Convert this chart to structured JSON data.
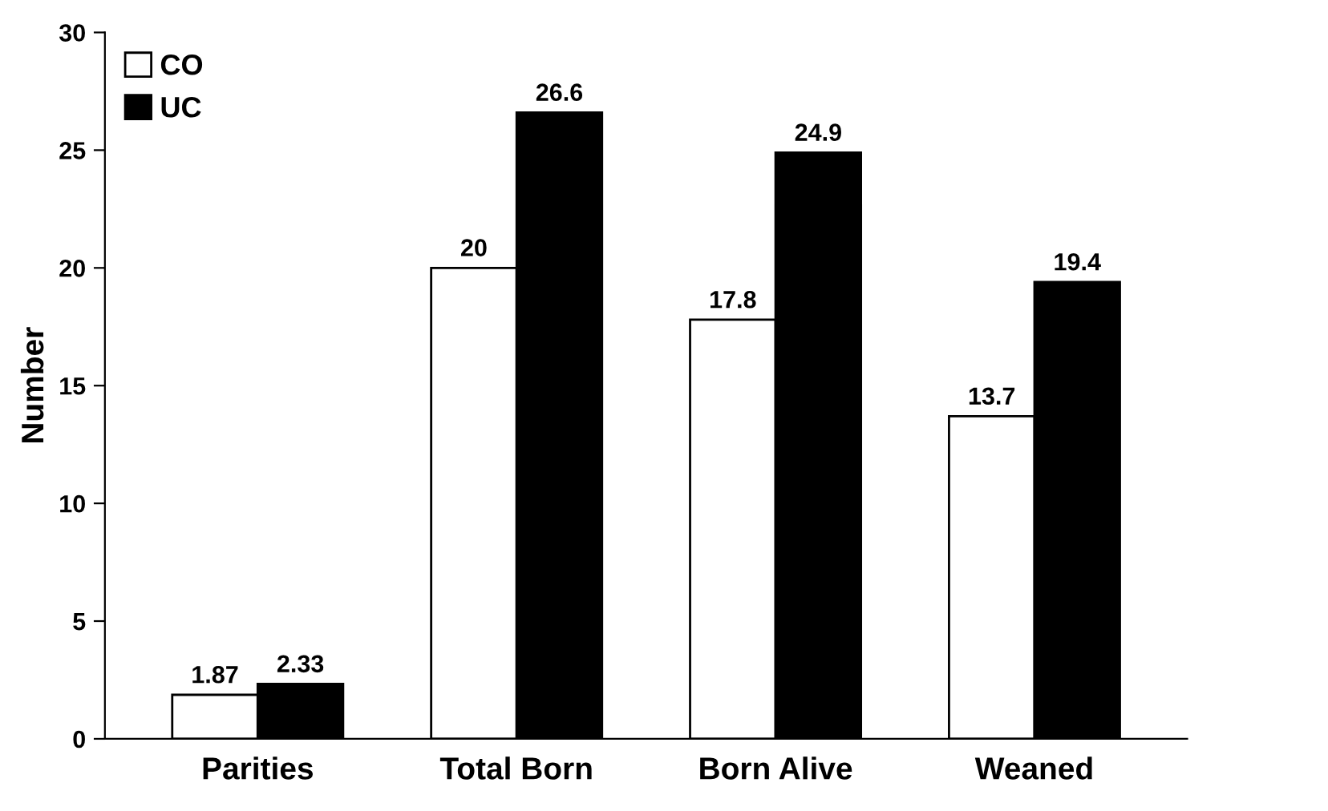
{
  "chart_data": {
    "type": "bar",
    "ylabel": "Number",
    "categories": [
      "Parities",
      "Total Born",
      "Born Alive",
      "Weaned"
    ],
    "series": [
      {
        "name": "CO",
        "color": "#ffffff",
        "values": [
          1.87,
          20,
          17.8,
          13.7
        ]
      },
      {
        "name": "UC",
        "color": "#000000",
        "values": [
          2.33,
          26.6,
          24.9,
          19.4
        ]
      }
    ],
    "ylim": [
      0,
      30
    ],
    "yticks": [
      0,
      5,
      10,
      15,
      20,
      25,
      30
    ],
    "data_labels": true,
    "legend": "top left",
    "grid": false
  }
}
